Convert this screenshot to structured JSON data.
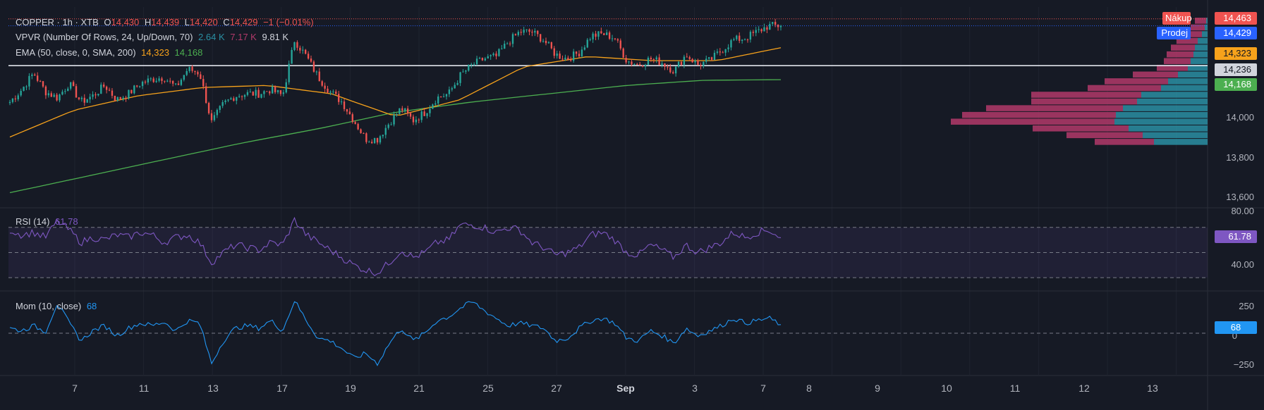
{
  "header": {
    "symbol": "COPPER · 1h · XTB",
    "o_label": "O",
    "o": "14,430",
    "h_label": "H",
    "h": "14,439",
    "l_label": "L",
    "l": "14,420",
    "c_label": "C",
    "c": "14,429",
    "change": "−1 (−0.01%)"
  },
  "vpvr": {
    "label": "VPVR (Number Of Rows, 24, Up/Down, 70)",
    "up": "2.64 K",
    "down": "7.17 K",
    "total": "9.81 K"
  },
  "ema": {
    "label": "EMA (50, close, 0, SMA, 200)",
    "ema50": "14,323",
    "sma200": "14,168"
  },
  "rsi": {
    "label": "RSI (14)",
    "value": "61.78",
    "ticks": [
      "80.00",
      "40.00"
    ]
  },
  "mom": {
    "label": "Mom (10, close)",
    "value": "68",
    "ticks": [
      "250",
      "0",
      "−250"
    ]
  },
  "price_axis": {
    "ticks": [
      "14,000",
      "13,800",
      "13,600"
    ]
  },
  "badges": {
    "buy_label": "Nákup",
    "buy": "14,463",
    "sell_label": "Prodej",
    "sell": "14,429",
    "ema50": "14,323",
    "hline": "14,236",
    "sma200": "14,168"
  },
  "colors": {
    "up": "#26a69a",
    "down": "#ef5350",
    "ema50": "#f7a21b",
    "sma200": "#4caf50",
    "rsi": "#7e57c2",
    "mom": "#2196f3",
    "vp_up": "#2a8fa3",
    "vp_down": "#b23a6a"
  },
  "x_axis": {
    "labels": [
      "7",
      "11",
      "13",
      "17",
      "19",
      "21",
      "25",
      "27",
      "Sep",
      "3",
      "7",
      "8",
      "9",
      "10",
      "11",
      "12",
      "13"
    ]
  },
  "chart_data": {
    "type": "candlestick",
    "title": "COPPER · 1h · XTB",
    "ylim": [
      13550,
      14520
    ],
    "x_labels": [
      "7",
      "11",
      "13",
      "17",
      "19",
      "21",
      "25",
      "27",
      "Sep",
      "3",
      "7",
      "8",
      "9",
      "10",
      "11",
      "12",
      "13"
    ],
    "close_path": [
      14060,
      14120,
      14200,
      14110,
      14080,
      14150,
      14060,
      14090,
      14140,
      14070,
      14100,
      14150,
      14170,
      14180,
      14130,
      14220,
      14200,
      13960,
      14050,
      14090,
      14100,
      14100,
      14120,
      14090,
      14360,
      14280,
      14180,
      14110,
      14060,
      13970,
      13880,
      13880,
      13960,
      14030,
      13970,
      14010,
      14080,
      14100,
      14190,
      14240,
      14270,
      14280,
      14350,
      14400,
      14400,
      14360,
      14290,
      14270,
      14300,
      14380,
      14390,
      14370,
      14260,
      14240,
      14270,
      14250,
      14210,
      14290,
      14240,
      14260,
      14310,
      14360,
      14370,
      14400,
      14430,
      14429
    ],
    "sma200_path": [
      13620,
      13700,
      13780,
      13860,
      13930,
      14010,
      14060,
      14100,
      14140,
      14165,
      14168
    ],
    "ema50_path": [
      13890,
      14020,
      14090,
      14130,
      14140,
      14100,
      13990,
      14070,
      14230,
      14280,
      14260,
      14260,
      14323
    ],
    "hline": 14236,
    "volume_profile": [
      {
        "up": 2,
        "down": 16
      },
      {
        "up": 4,
        "down": 20
      },
      {
        "up": 8,
        "down": 22
      },
      {
        "up": 14,
        "down": 30
      },
      {
        "up": 18,
        "down": 34
      },
      {
        "up": 20,
        "down": 38
      },
      {
        "up": 24,
        "down": 38
      },
      {
        "up": 28,
        "down": 44
      },
      {
        "up": 42,
        "down": 64
      },
      {
        "up": 56,
        "down": 90
      },
      {
        "up": 66,
        "down": 104
      },
      {
        "up": 94,
        "down": 156
      },
      {
        "up": 100,
        "down": 150
      },
      {
        "up": 120,
        "down": 194
      },
      {
        "up": 130,
        "down": 218
      },
      {
        "up": 132,
        "down": 232
      },
      {
        "up": 112,
        "down": 136
      },
      {
        "up": 92,
        "down": 108
      },
      {
        "up": 76,
        "down": 84
      }
    ],
    "rsi_ylim": [
      20,
      85
    ],
    "rsi_levels": [
      70,
      50,
      30
    ],
    "rsi_path": [
      68,
      64,
      66,
      62,
      75,
      68,
      58,
      62,
      60,
      64,
      62,
      66,
      64,
      58,
      62,
      64,
      58,
      42,
      50,
      56,
      54,
      52,
      58,
      56,
      76,
      64,
      58,
      52,
      46,
      40,
      36,
      34,
      42,
      52,
      46,
      50,
      58,
      60,
      72,
      72,
      70,
      66,
      70,
      68,
      58,
      54,
      48,
      50,
      54,
      64,
      66,
      60,
      50,
      48,
      56,
      52,
      46,
      56,
      50,
      54,
      58,
      66,
      62,
      66,
      68,
      61.78
    ],
    "mom_ylim": [
      -330,
      330
    ],
    "mom_path": [
      40,
      20,
      60,
      10,
      240,
      80,
      -60,
      20,
      60,
      -20,
      40,
      80,
      60,
      90,
      20,
      100,
      80,
      -240,
      -60,
      40,
      60,
      40,
      100,
      20,
      260,
      100,
      -40,
      -60,
      -120,
      -200,
      -160,
      -240,
      -80,
      40,
      -60,
      0,
      100,
      130,
      200,
      250,
      180,
      120,
      60,
      80,
      60,
      40,
      -60,
      -40,
      40,
      100,
      120,
      80,
      -40,
      -60,
      20,
      -20,
      -80,
      40,
      -20,
      20,
      60,
      120,
      80,
      100,
      120,
      68
    ],
    "candle_count": 280,
    "last_close": 14429
  }
}
